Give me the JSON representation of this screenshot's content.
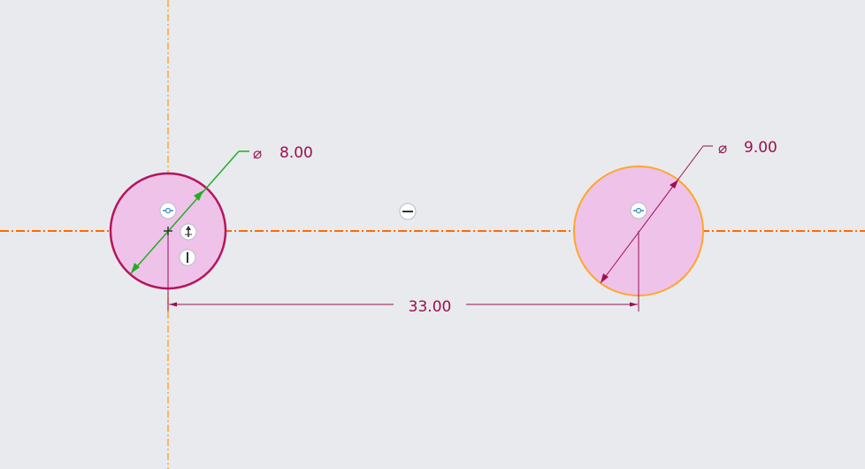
{
  "sketch": {
    "colors": {
      "background": "#e8eaee",
      "centerline_horizontal": "#ff6a00",
      "centerline_vertical": "#ffa62b",
      "circle_fill": "#efc2ea",
      "left_circle_stroke": "#b5155f",
      "right_circle_stroke": "#ffa62b",
      "dimension": "#9c1050",
      "active_dimension": "#1faf1f",
      "constraint_icon_bg": "#ffffff",
      "constraint_icon_border": "#b8bcc4",
      "constraint_symbol": "#333333"
    },
    "dimensions": {
      "left_diameter": {
        "symbol": "⌀",
        "value": "8.00",
        "color": "#9c1050",
        "leader_color": "#1faf1f"
      },
      "right_diameter": {
        "symbol": "⌀",
        "value": "9.00",
        "color": "#9c1050"
      },
      "distance": {
        "value": "33.00",
        "color": "#9c1050"
      }
    },
    "constraint_icons": [
      {
        "name": "horizontal-constraint-icon",
        "symbol": "—"
      },
      {
        "name": "point-on-line-icon",
        "symbol": "⊶"
      },
      {
        "name": "point-on-line-icon",
        "symbol": "⊶"
      },
      {
        "name": "vertical-constraint-icon",
        "symbol": "|"
      },
      {
        "name": "tangent-constraint-icon",
        "symbol": "↑"
      }
    ]
  }
}
